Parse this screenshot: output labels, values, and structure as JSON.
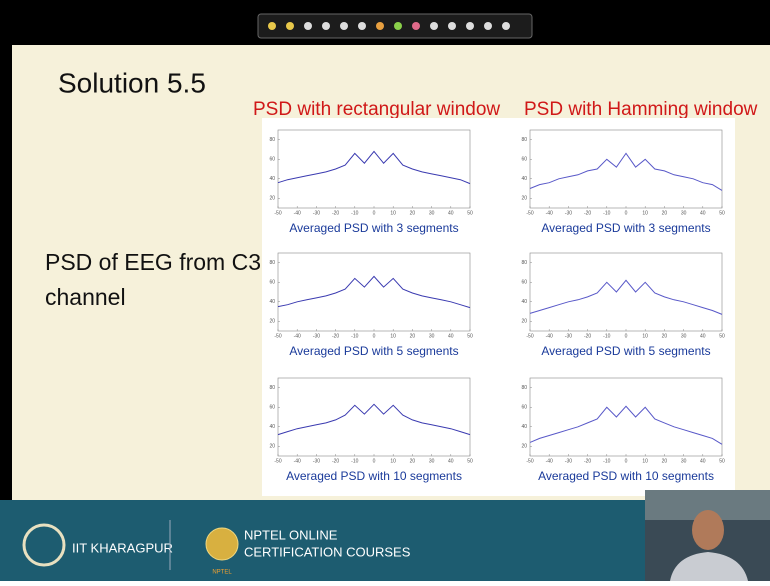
{
  "slide": {
    "title": "Solution 5.5",
    "column_titles": [
      "PSD with rectangular window",
      "PSD with Hamming window"
    ],
    "body": [
      "PSD of EEG from C3",
      "channel"
    ],
    "footer": {
      "institute": "IIT KHARAGPUR",
      "line1": "NPTEL ONLINE",
      "line2": "CERTIFICATION COURSES",
      "logo": "NPTEL"
    }
  },
  "chart_data": [
    {
      "type": "line",
      "title": "Averaged PSD with 3 segments",
      "x": [
        -50,
        -45,
        -40,
        -35,
        -30,
        -25,
        -20,
        -15,
        -10,
        -5,
        0,
        5,
        10,
        15,
        20,
        25,
        30,
        35,
        40,
        45,
        50
      ],
      "values": [
        36,
        39,
        41,
        43,
        45,
        47,
        50,
        54,
        66,
        56,
        68,
        56,
        66,
        54,
        50,
        47,
        45,
        43,
        41,
        39,
        35
      ],
      "color": "#3a3ab0",
      "xlim": [
        -50,
        50
      ],
      "xticks": [
        -50,
        -40,
        -30,
        -20,
        -10,
        0,
        10,
        20,
        30,
        40,
        50
      ],
      "ylim": [
        10,
        90
      ],
      "yticks": [
        20,
        40,
        60,
        80
      ]
    },
    {
      "type": "line",
      "title": "Averaged PSD with 3 segments",
      "x": [
        -50,
        -45,
        -40,
        -35,
        -30,
        -25,
        -20,
        -15,
        -10,
        -5,
        0,
        5,
        10,
        15,
        20,
        25,
        30,
        35,
        40,
        45,
        50
      ],
      "values": [
        30,
        34,
        36,
        40,
        42,
        44,
        48,
        50,
        60,
        52,
        66,
        52,
        60,
        50,
        48,
        44,
        42,
        40,
        36,
        34,
        28
      ],
      "color": "#5858c8",
      "xlim": [
        -50,
        50
      ],
      "xticks": [
        -50,
        -40,
        -30,
        -20,
        -10,
        0,
        10,
        20,
        30,
        40,
        50
      ],
      "ylim": [
        10,
        90
      ],
      "yticks": [
        20,
        40,
        60,
        80
      ]
    },
    {
      "type": "line",
      "title": "Averaged PSD with 5 segments",
      "x": [
        -50,
        -45,
        -40,
        -35,
        -30,
        -25,
        -20,
        -15,
        -10,
        -5,
        0,
        5,
        10,
        15,
        20,
        25,
        30,
        35,
        40,
        45,
        50
      ],
      "values": [
        35,
        37,
        40,
        42,
        44,
        46,
        49,
        53,
        64,
        55,
        66,
        55,
        64,
        53,
        49,
        46,
        44,
        42,
        40,
        37,
        34
      ],
      "color": "#3a3ab0",
      "xlim": [
        -50,
        50
      ],
      "xticks": [
        -50,
        -40,
        -30,
        -20,
        -10,
        0,
        10,
        20,
        30,
        40,
        50
      ],
      "ylim": [
        10,
        90
      ],
      "yticks": [
        20,
        40,
        60,
        80
      ]
    },
    {
      "type": "line",
      "title": "Averaged PSD with 5 segments",
      "x": [
        -50,
        -45,
        -40,
        -35,
        -30,
        -25,
        -20,
        -15,
        -10,
        -5,
        0,
        5,
        10,
        15,
        20,
        25,
        30,
        35,
        40,
        45,
        50
      ],
      "values": [
        28,
        31,
        34,
        37,
        40,
        42,
        45,
        49,
        60,
        50,
        62,
        50,
        60,
        49,
        45,
        42,
        40,
        37,
        34,
        31,
        27
      ],
      "color": "#5858c8",
      "xlim": [
        -50,
        50
      ],
      "xticks": [
        -50,
        -40,
        -30,
        -20,
        -10,
        0,
        10,
        20,
        30,
        40,
        50
      ],
      "ylim": [
        10,
        90
      ],
      "yticks": [
        20,
        40,
        60,
        80
      ]
    },
    {
      "type": "line",
      "title": "Averaged PSD with 10 segments",
      "x": [
        -50,
        -45,
        -40,
        -35,
        -30,
        -25,
        -20,
        -15,
        -10,
        -5,
        0,
        5,
        10,
        15,
        20,
        25,
        30,
        35,
        40,
        45,
        50
      ],
      "values": [
        32,
        35,
        38,
        40,
        42,
        44,
        47,
        52,
        62,
        53,
        63,
        53,
        62,
        52,
        47,
        44,
        42,
        40,
        38,
        35,
        32
      ],
      "color": "#3a3ab0",
      "xlim": [
        -50,
        50
      ],
      "xticks": [
        -50,
        -40,
        -30,
        -20,
        -10,
        0,
        10,
        20,
        30,
        40,
        50
      ],
      "ylim": [
        10,
        90
      ],
      "yticks": [
        20,
        40,
        60,
        80
      ]
    },
    {
      "type": "line",
      "title": "Averaged PSD with 10 segments",
      "x": [
        -50,
        -45,
        -40,
        -35,
        -30,
        -25,
        -20,
        -15,
        -10,
        -5,
        0,
        5,
        10,
        15,
        20,
        25,
        30,
        35,
        40,
        45,
        50
      ],
      "values": [
        24,
        28,
        31,
        34,
        37,
        40,
        44,
        48,
        60,
        50,
        61,
        50,
        60,
        48,
        44,
        40,
        37,
        34,
        31,
        28,
        22
      ],
      "color": "#5858c8",
      "xlim": [
        -50,
        50
      ],
      "xticks": [
        -50,
        -40,
        -30,
        -20,
        -10,
        0,
        10,
        20,
        30,
        40,
        50
      ],
      "ylim": [
        10,
        90
      ],
      "yticks": [
        20,
        40,
        60,
        80
      ]
    }
  ]
}
